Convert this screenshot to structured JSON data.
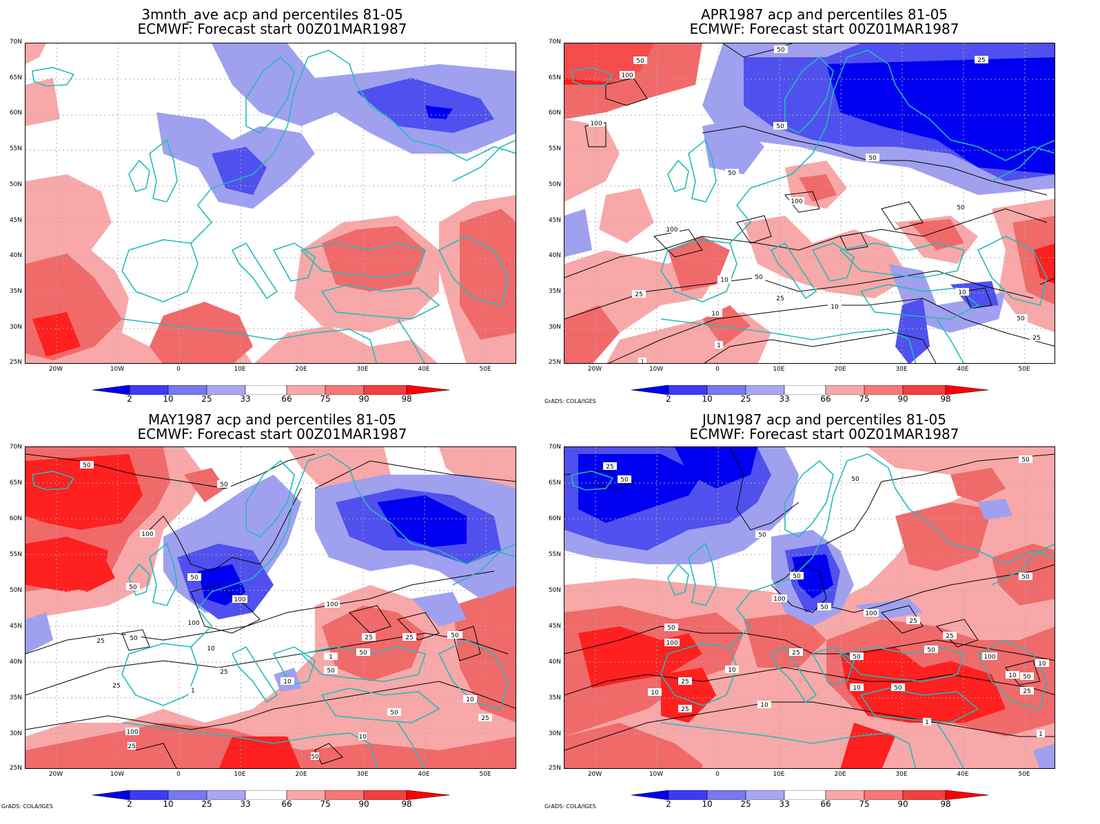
{
  "panels": [
    {
      "title1": "3mnth_ave acp and percentiles 81-05",
      "title2": "ECMWF: Forecast start 00Z01MAR1987",
      "credit": ""
    },
    {
      "title1": "APR1987 acp and percentiles 81-05",
      "title2": "ECMWF: Forecast start 00Z01MAR1987",
      "credit": "GrADS: COLA/IGES"
    },
    {
      "title1": "MAY1987 acp and percentiles 81-05",
      "title2": "ECMWF: Forecast start 00Z01MAR1987",
      "credit": "GrADS: COLA/IGES"
    },
    {
      "title1": "JUN1987 acp and percentiles 81-05",
      "title2": "ECMWF: Forecast start 00Z01MAR1987",
      "credit": "GrADS: COLA/IGES"
    }
  ],
  "lat_ticks": [
    "70N",
    "65N",
    "60N",
    "55N",
    "50N",
    "45N",
    "40N",
    "35N",
    "30N",
    "25N"
  ],
  "lon_ticks": [
    "20W",
    "10W",
    "0",
    "10E",
    "20E",
    "30E",
    "40E",
    "50E"
  ],
  "colorbar": {
    "labels": [
      "2",
      "10",
      "25",
      "33",
      "66",
      "75",
      "90",
      "98"
    ],
    "colors": [
      "#0000f0",
      "#3c3cf5",
      "#7878f0",
      "#a8a8f2",
      "#ffffff",
      "#f8a8a8",
      "#f57878",
      "#f04040",
      "#ff0000"
    ]
  },
  "colors": {
    "coast": "#22bbbb",
    "contour": "#000000",
    "grid": "#aaaaaa",
    "blue_strong": "#0000f0",
    "blue_mid": "#5050ee",
    "blue_light": "#a0a0f0",
    "red_light": "#f8a8a8",
    "red_mid": "#f06a6a",
    "red_strong": "#ff2020"
  },
  "contour_labels": {
    "p1": [
      "50",
      "100",
      "100",
      "50",
      "25",
      "50",
      "100",
      "100",
      "50",
      "50",
      "50",
      "10",
      "25",
      "10",
      "1",
      "1",
      "50",
      "10",
      "25",
      "50",
      "25",
      "10"
    ],
    "p2": [
      "50",
      "50",
      "100",
      "50",
      "100",
      "100",
      "100",
      "50",
      "25",
      "50",
      "25",
      "50",
      "25",
      "50",
      "10",
      "25",
      "25",
      "1",
      "10",
      "1",
      "50",
      "100",
      "25",
      "10",
      "50",
      "10",
      "50",
      "25"
    ],
    "p3": [
      "25",
      "50",
      "50",
      "50",
      "100",
      "100",
      "100",
      "50",
      "50",
      "50",
      "100",
      "25",
      "50",
      "25",
      "50",
      "10",
      "25",
      "25",
      "10",
      "50",
      "10",
      "1",
      "10",
      "50",
      "25",
      "50",
      "100",
      "50",
      "10",
      "25",
      "10",
      "1"
    ]
  }
}
